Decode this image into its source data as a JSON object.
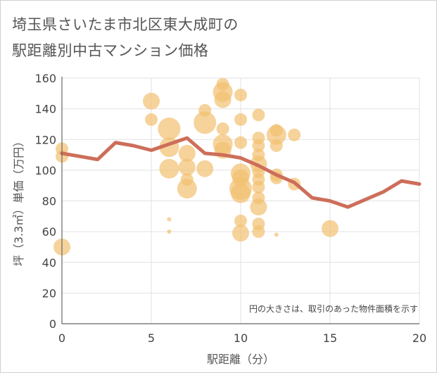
{
  "title_line1": "埼玉県さいたま市北区東大成町の",
  "title_line2": "駅距離別中古マンション価格",
  "chart_data": {
    "type": "scatter",
    "xlabel": "駅距離（分）",
    "ylabel": "坪（3.3㎡）単価（万円）",
    "xlim": [
      0,
      20
    ],
    "ylim": [
      0,
      160
    ],
    "xticks": [
      "0",
      "5",
      "10",
      "15",
      "20"
    ],
    "yticks": [
      "0",
      "20",
      "40",
      "60",
      "80",
      "100",
      "120",
      "140",
      "160"
    ],
    "note": "円の大きさは、取引のあった物件面積を示す",
    "bubble_color": "#f2c070",
    "line_color": "#cd6e5a",
    "points": [
      {
        "x": 0,
        "y": 50,
        "s": 3
      },
      {
        "x": 0,
        "y": 114,
        "s": 2
      },
      {
        "x": 0,
        "y": 109,
        "s": 2
      },
      {
        "x": 5,
        "y": 145,
        "s": 3
      },
      {
        "x": 5,
        "y": 133,
        "s": 2
      },
      {
        "x": 6,
        "y": 127,
        "s": 5
      },
      {
        "x": 6,
        "y": 115,
        "s": 4
      },
      {
        "x": 6,
        "y": 101,
        "s": 4
      },
      {
        "x": 6,
        "y": 68,
        "s": 1
      },
      {
        "x": 6,
        "y": 60,
        "s": 1
      },
      {
        "x": 7,
        "y": 111,
        "s": 3
      },
      {
        "x": 7,
        "y": 102,
        "s": 3
      },
      {
        "x": 7,
        "y": 94,
        "s": 2
      },
      {
        "x": 7,
        "y": 88,
        "s": 4
      },
      {
        "x": 8,
        "y": 139,
        "s": 2
      },
      {
        "x": 8,
        "y": 131,
        "s": 5
      },
      {
        "x": 8,
        "y": 101,
        "s": 3
      },
      {
        "x": 9,
        "y": 156,
        "s": 2
      },
      {
        "x": 9,
        "y": 151,
        "s": 4
      },
      {
        "x": 9,
        "y": 146,
        "s": 3
      },
      {
        "x": 9,
        "y": 127,
        "s": 2
      },
      {
        "x": 9,
        "y": 117,
        "s": 4
      },
      {
        "x": 9,
        "y": 113,
        "s": 3
      },
      {
        "x": 10,
        "y": 149,
        "s": 2
      },
      {
        "x": 10,
        "y": 133,
        "s": 2
      },
      {
        "x": 10,
        "y": 118,
        "s": 2
      },
      {
        "x": 10,
        "y": 98,
        "s": 4
      },
      {
        "x": 10,
        "y": 95,
        "s": 3
      },
      {
        "x": 10,
        "y": 88,
        "s": 5
      },
      {
        "x": 10,
        "y": 85,
        "s": 4
      },
      {
        "x": 10,
        "y": 67,
        "s": 2
      },
      {
        "x": 10,
        "y": 59,
        "s": 3
      },
      {
        "x": 11,
        "y": 136,
        "s": 2
      },
      {
        "x": 11,
        "y": 121,
        "s": 2
      },
      {
        "x": 11,
        "y": 116,
        "s": 2
      },
      {
        "x": 11,
        "y": 110,
        "s": 2
      },
      {
        "x": 11,
        "y": 104,
        "s": 3
      },
      {
        "x": 11,
        "y": 99,
        "s": 2
      },
      {
        "x": 11,
        "y": 94,
        "s": 2
      },
      {
        "x": 11,
        "y": 89,
        "s": 2
      },
      {
        "x": 11,
        "y": 82,
        "s": 2
      },
      {
        "x": 11,
        "y": 76,
        "s": 3
      },
      {
        "x": 11,
        "y": 65,
        "s": 2
      },
      {
        "x": 11,
        "y": 60,
        "s": 2
      },
      {
        "x": 12,
        "y": 126,
        "s": 2
      },
      {
        "x": 12,
        "y": 123,
        "s": 4
      },
      {
        "x": 12,
        "y": 116,
        "s": 2
      },
      {
        "x": 12,
        "y": 97,
        "s": 2
      },
      {
        "x": 12,
        "y": 95,
        "s": 2
      },
      {
        "x": 12,
        "y": 58,
        "s": 1
      },
      {
        "x": 13,
        "y": 123,
        "s": 2
      },
      {
        "x": 13,
        "y": 91,
        "s": 2
      },
      {
        "x": 15,
        "y": 62,
        "s": 3
      }
    ],
    "line": {
      "x": [
        0,
        1,
        2,
        3,
        4,
        5,
        6,
        7,
        8,
        9,
        10,
        11,
        12,
        13,
        14,
        15,
        16,
        17,
        18,
        19,
        20
      ],
      "y": [
        111,
        109,
        107,
        118,
        116,
        113,
        117,
        121,
        111,
        110,
        108,
        103,
        97,
        92,
        82,
        80,
        76,
        81,
        86,
        93,
        91
      ]
    }
  }
}
